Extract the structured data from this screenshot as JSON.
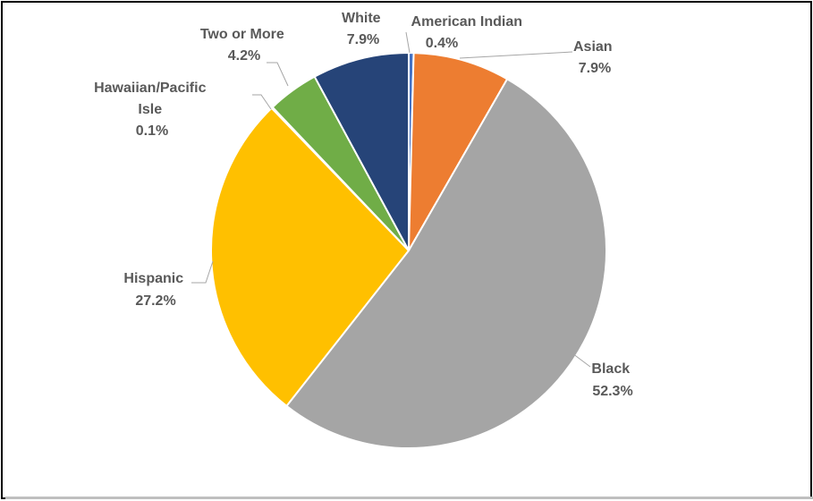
{
  "chart_data": {
    "type": "pie",
    "title": "",
    "slices": [
      {
        "label": "American Indian",
        "value": 0.4,
        "value_label": "0.4%",
        "color": "#4472c4"
      },
      {
        "label": "Asian",
        "value": 7.9,
        "value_label": "7.9%",
        "color": "#ed7d31"
      },
      {
        "label": "Black",
        "value": 52.3,
        "value_label": "52.3%",
        "color": "#a5a5a5"
      },
      {
        "label": "Hispanic",
        "value": 27.2,
        "value_label": "27.2%",
        "color": "#ffc000"
      },
      {
        "label": "Hawaiian/Pacific Isle",
        "value": 0.1,
        "value_label": "0.1%",
        "color": "#5b9bd5"
      },
      {
        "label": "Two or More",
        "value": 4.2,
        "value_label": "4.2%",
        "color": "#70ad47"
      },
      {
        "label": "White",
        "value": 7.9,
        "value_label": "7.9%",
        "color": "#264478"
      }
    ],
    "legend": "none",
    "data_labels": "outside-with-leader-lines"
  }
}
